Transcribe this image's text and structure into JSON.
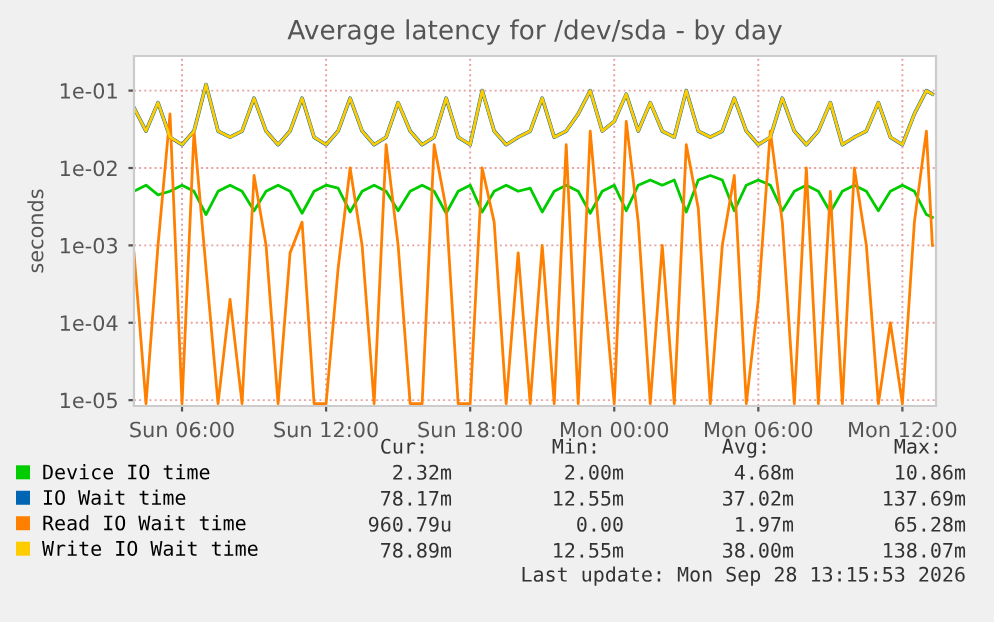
{
  "chart_data": {
    "type": "line",
    "title": "Average latency for /dev/sda - by day",
    "ylabel": "seconds",
    "x": [
      "2026-09-27T04:00",
      "2026-09-27T04:30",
      "2026-09-27T05:00",
      "2026-09-27T05:30",
      "2026-09-27T06:00",
      "2026-09-27T06:30",
      "2026-09-27T07:00",
      "2026-09-27T07:30",
      "2026-09-27T08:00",
      "2026-09-27T08:30",
      "2026-09-27T09:00",
      "2026-09-27T09:30",
      "2026-09-27T10:00",
      "2026-09-27T10:30",
      "2026-09-27T11:00",
      "2026-09-27T11:30",
      "2026-09-27T12:00",
      "2026-09-27T12:30",
      "2026-09-27T13:00",
      "2026-09-27T13:30",
      "2026-09-27T14:00",
      "2026-09-27T14:30",
      "2026-09-27T15:00",
      "2026-09-27T15:30",
      "2026-09-27T16:00",
      "2026-09-27T16:30",
      "2026-09-27T17:00",
      "2026-09-27T17:30",
      "2026-09-27T18:00",
      "2026-09-27T18:30",
      "2026-09-27T19:00",
      "2026-09-27T19:30",
      "2026-09-27T20:00",
      "2026-09-27T20:30",
      "2026-09-27T21:00",
      "2026-09-27T21:30",
      "2026-09-27T22:00",
      "2026-09-27T22:30",
      "2026-09-27T23:00",
      "2026-09-27T23:30",
      "2026-09-28T00:00",
      "2026-09-28T00:30",
      "2026-09-28T01:00",
      "2026-09-28T01:30",
      "2026-09-28T02:00",
      "2026-09-28T02:30",
      "2026-09-28T03:00",
      "2026-09-28T03:30",
      "2026-09-28T04:00",
      "2026-09-28T04:30",
      "2026-09-28T05:00",
      "2026-09-28T05:30",
      "2026-09-28T06:00",
      "2026-09-28T06:30",
      "2026-09-28T07:00",
      "2026-09-28T07:30",
      "2026-09-28T08:00",
      "2026-09-28T08:30",
      "2026-09-28T09:00",
      "2026-09-28T09:30",
      "2026-09-28T10:00",
      "2026-09-28T10:30",
      "2026-09-28T11:00",
      "2026-09-28T11:30",
      "2026-09-28T12:00",
      "2026-09-28T12:30",
      "2026-09-28T13:00",
      "2026-09-28T13:15"
    ],
    "series": [
      {
        "name": "Device IO time",
        "color": "#00cc00",
        "values": [
          0.005,
          0.006,
          0.0045,
          0.005,
          0.006,
          0.005,
          0.0025,
          0.005,
          0.006,
          0.005,
          0.0028,
          0.005,
          0.006,
          0.005,
          0.0026,
          0.005,
          0.006,
          0.0055,
          0.0027,
          0.005,
          0.006,
          0.005,
          0.0028,
          0.005,
          0.006,
          0.005,
          0.0026,
          0.005,
          0.006,
          0.0027,
          0.005,
          0.006,
          0.005,
          0.0055,
          0.0027,
          0.005,
          0.006,
          0.005,
          0.0026,
          0.005,
          0.006,
          0.0028,
          0.006,
          0.007,
          0.006,
          0.007,
          0.0027,
          0.007,
          0.008,
          0.007,
          0.0028,
          0.006,
          0.007,
          0.006,
          0.0028,
          0.005,
          0.006,
          0.005,
          0.0027,
          0.005,
          0.006,
          0.005,
          0.0028,
          0.005,
          0.006,
          0.005,
          0.0025,
          0.0023
        ]
      },
      {
        "name": "IO Wait time",
        "color": "#0066b3",
        "values": [
          0.06,
          0.03,
          0.07,
          0.025,
          0.02,
          0.03,
          0.12,
          0.03,
          0.025,
          0.03,
          0.08,
          0.03,
          0.02,
          0.03,
          0.08,
          0.025,
          0.02,
          0.03,
          0.08,
          0.03,
          0.02,
          0.025,
          0.07,
          0.03,
          0.02,
          0.025,
          0.08,
          0.025,
          0.02,
          0.1,
          0.03,
          0.02,
          0.025,
          0.03,
          0.08,
          0.025,
          0.03,
          0.05,
          0.1,
          0.03,
          0.04,
          0.09,
          0.03,
          0.07,
          0.03,
          0.025,
          0.1,
          0.03,
          0.025,
          0.03,
          0.08,
          0.03,
          0.02,
          0.025,
          0.08,
          0.03,
          0.02,
          0.03,
          0.07,
          0.02,
          0.025,
          0.03,
          0.07,
          0.025,
          0.02,
          0.05,
          0.1,
          0.09
        ]
      },
      {
        "name": "Read IO Wait time",
        "color": "#ff8000",
        "values": [
          0.0008,
          9e-06,
          0.001,
          0.05,
          9e-06,
          0.03,
          0.0005,
          9e-06,
          0.0002,
          9e-06,
          0.008,
          0.001,
          9e-06,
          0.0008,
          0.002,
          9e-06,
          9e-06,
          0.0005,
          0.01,
          0.001,
          9e-06,
          0.02,
          0.001,
          9e-06,
          9e-06,
          0.02,
          0.003,
          9e-06,
          9e-06,
          0.01,
          0.002,
          9e-06,
          0.0008,
          9e-06,
          0.001,
          9e-06,
          0.02,
          9e-06,
          0.03,
          0.0005,
          9e-06,
          0.04,
          0.002,
          9e-06,
          0.001,
          9e-06,
          0.02,
          0.003,
          9e-06,
          0.001,
          0.008,
          9e-06,
          0.0002,
          0.03,
          0.002,
          9e-06,
          0.01,
          9e-06,
          0.005,
          9e-06,
          0.01,
          0.001,
          9e-06,
          0.0001,
          9e-06,
          0.002,
          0.03,
          0.001
        ]
      },
      {
        "name": "Write IO Wait time",
        "color": "#ffcc00",
        "values": [
          0.06,
          0.03,
          0.07,
          0.025,
          0.02,
          0.03,
          0.12,
          0.03,
          0.025,
          0.03,
          0.08,
          0.03,
          0.02,
          0.03,
          0.08,
          0.025,
          0.02,
          0.03,
          0.08,
          0.03,
          0.02,
          0.025,
          0.07,
          0.03,
          0.02,
          0.025,
          0.08,
          0.025,
          0.02,
          0.1,
          0.03,
          0.02,
          0.025,
          0.03,
          0.08,
          0.025,
          0.03,
          0.05,
          0.1,
          0.03,
          0.04,
          0.09,
          0.03,
          0.07,
          0.03,
          0.025,
          0.1,
          0.03,
          0.025,
          0.03,
          0.08,
          0.03,
          0.02,
          0.025,
          0.08,
          0.03,
          0.02,
          0.03,
          0.07,
          0.02,
          0.025,
          0.03,
          0.07,
          0.025,
          0.02,
          0.05,
          0.1,
          0.09
        ]
      }
    ],
    "log": "y",
    "ylim": [
      8.4e-06,
      0.28
    ],
    "yticks": [
      {
        "value": 1e-05,
        "label": "1e-05"
      },
      {
        "value": 0.0001,
        "label": "1e-04"
      },
      {
        "value": 0.001,
        "label": "1e-03"
      },
      {
        "value": 0.01,
        "label": "1e-02"
      },
      {
        "value": 0.1,
        "label": "1e-01"
      }
    ],
    "xlim": [
      "2026-09-27T04:00",
      "2026-09-28T13:24"
    ],
    "xticks": [
      {
        "value": "2026-09-27T06:00",
        "label": "Sun 06:00"
      },
      {
        "value": "2026-09-27T12:00",
        "label": "Sun 12:00"
      },
      {
        "value": "2026-09-27T18:00",
        "label": "Sun 18:00"
      },
      {
        "value": "2026-09-28T00:00",
        "label": "Mon 00:00"
      },
      {
        "value": "2026-09-28T06:00",
        "label": "Mon 06:00"
      },
      {
        "value": "2026-09-28T12:00",
        "label": "Mon 12:00"
      }
    ],
    "grid": true,
    "legend": "bottom",
    "marker": "none",
    "line_style": "solid",
    "annotations": [
      "Cur:",
      "Min:",
      "Avg:",
      "Max:",
      "2.32m",
      "2.00m",
      "4.68m",
      "10.86m",
      "78.17m",
      "12.55m",
      "37.02m",
      "137.69m",
      "960.79u",
      "0.00",
      "1.97m",
      "65.28m",
      "78.89m",
      "12.55m",
      "38.00m",
      "138.07m",
      "Last update: Mon Sep 28 13:15:53 2026"
    ]
  }
}
